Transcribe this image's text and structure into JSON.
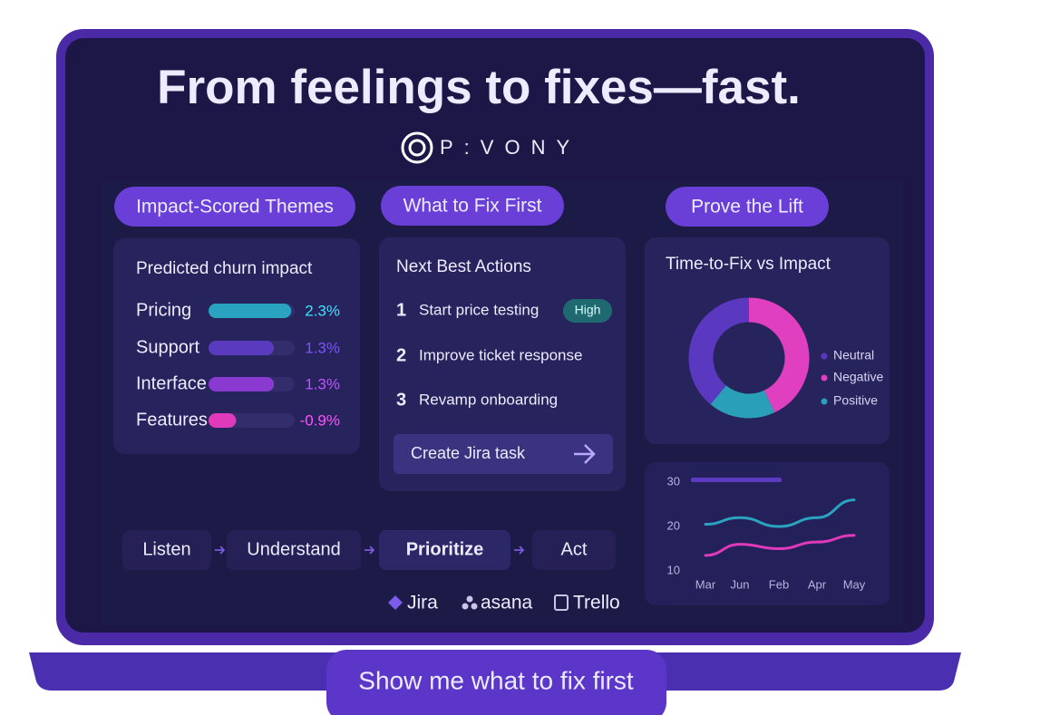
{
  "header": {
    "title": "From feelings to fixes—fast.",
    "brand": "P:VONY"
  },
  "sections": [
    "Impact-Scored Themes",
    "What to Fix First",
    "Prove the Lift"
  ],
  "chart_data": [
    {
      "type": "bar",
      "orientation": "horizontal",
      "title": "Predicted churn impact",
      "categories": [
        "Pricing",
        "Support",
        "Interface",
        "Features"
      ],
      "values": [
        2.3,
        1.3,
        1.3,
        -0.9
      ],
      "value_labels": [
        "2.3%",
        "1.3%",
        "1.3%",
        "-0.9%"
      ],
      "colors": [
        "#2aa3c0",
        "#5a3bc0",
        "#8a3ad0",
        "#e03aba"
      ],
      "xlim": [
        -2.5,
        2.5
      ]
    },
    {
      "type": "pie",
      "title": "Time-to-Fix vs Impact",
      "categories": [
        "Neutral",
        "Negative",
        "Positive"
      ],
      "values": [
        39,
        43,
        18
      ],
      "colors": [
        "#5a38c0",
        "#e040c0",
        "#2a9fb8"
      ]
    },
    {
      "type": "line",
      "categories": [
        "Mar",
        "Jun",
        "Feb",
        "Apr",
        "May"
      ],
      "series": [
        {
          "color": "#2aa3c0",
          "values": [
            20.5,
            22,
            20,
            22,
            26
          ]
        },
        {
          "color": "#e03aba",
          "values": [
            13.5,
            16,
            15,
            16.5,
            18
          ]
        }
      ],
      "ylim": [
        10,
        30
      ],
      "yticks": [
        10,
        20,
        30
      ]
    }
  ],
  "actions": {
    "title": "Next Best Actions",
    "items": [
      {
        "number": 1,
        "text": "Start price testing",
        "badge": "High"
      },
      {
        "number": 2,
        "text": "Improve ticket response"
      },
      {
        "number": 3,
        "text": "Revamp onboarding"
      }
    ],
    "button": "Create Jira task"
  },
  "flow": [
    "Listen",
    "Understand",
    "Prioritize",
    "Act"
  ],
  "integrations": [
    "Jira",
    "asana",
    "Trello"
  ],
  "cta": "Show me what to fix first"
}
